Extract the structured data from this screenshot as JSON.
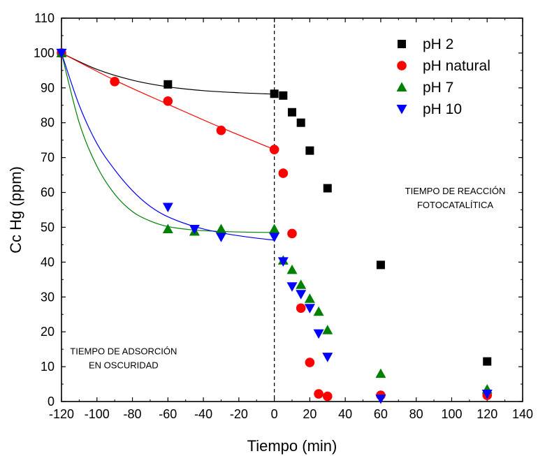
{
  "chart_data": {
    "type": "scatter",
    "xlabel": "Tiempo (min)",
    "ylabel": "Cc Hg (ppm)",
    "xlim": [
      -120,
      140
    ],
    "ylim": [
      0,
      110
    ],
    "x_ticks": [
      -120,
      -100,
      -80,
      -60,
      -40,
      -20,
      0,
      20,
      40,
      60,
      80,
      100,
      120,
      140
    ],
    "y_ticks": [
      0,
      10,
      20,
      30,
      40,
      50,
      60,
      70,
      80,
      90,
      100,
      110
    ],
    "grid": false,
    "legend_position": "top-right",
    "vertical_reference_line": {
      "x": 0,
      "style": "dashed"
    },
    "series": [
      {
        "name": "pH 2",
        "marker": "square",
        "color": "#000000",
        "points": [
          [
            -120,
            100
          ],
          [
            -60,
            91
          ],
          [
            0,
            88.3
          ],
          [
            5,
            87.8
          ],
          [
            10,
            83
          ],
          [
            15,
            80
          ],
          [
            20,
            72
          ],
          [
            30,
            61.2
          ],
          [
            60,
            39.2
          ],
          [
            120,
            11.5
          ]
        ],
        "fit_line": [
          [
            -120,
            100
          ],
          [
            -100,
            95.3
          ],
          [
            -80,
            92.2
          ],
          [
            -60,
            90.3
          ],
          [
            -40,
            89.2
          ],
          [
            -20,
            88.6
          ],
          [
            0,
            88.2
          ]
        ]
      },
      {
        "name": "pH natural",
        "marker": "circle",
        "color": "#ff0000",
        "points": [
          [
            -120,
            100
          ],
          [
            -90,
            91.8
          ],
          [
            -60,
            86.2
          ],
          [
            -30,
            77.8
          ],
          [
            0,
            72.3
          ],
          [
            5,
            65.5
          ],
          [
            10,
            48.2
          ],
          [
            15,
            26.8
          ],
          [
            20,
            11.2
          ],
          [
            25,
            2.2
          ],
          [
            30,
            1.5
          ],
          [
            60,
            1.8
          ],
          [
            120,
            1.8
          ]
        ],
        "fit_line": [
          [
            -120,
            100
          ],
          [
            -90,
            92.2
          ],
          [
            -60,
            85.3
          ],
          [
            -30,
            78.6
          ],
          [
            0,
            72.3
          ]
        ]
      },
      {
        "name": "pH 7",
        "marker": "triangle-up",
        "color": "#008000",
        "points": [
          [
            -120,
            100
          ],
          [
            -60,
            49.5
          ],
          [
            -45,
            48.8
          ],
          [
            -30,
            49.5
          ],
          [
            0,
            49.5
          ],
          [
            5,
            40.5
          ],
          [
            10,
            37.8
          ],
          [
            15,
            33.5
          ],
          [
            20,
            29.5
          ],
          [
            25,
            25.8
          ],
          [
            30,
            20.5
          ],
          [
            60,
            8
          ],
          [
            120,
            3.5
          ]
        ],
        "fit_line": [
          [
            -120,
            100
          ],
          [
            -110,
            80
          ],
          [
            -100,
            67.5
          ],
          [
            -90,
            59.5
          ],
          [
            -80,
            54.5
          ],
          [
            -70,
            51.8
          ],
          [
            -60,
            50.2
          ],
          [
            -45,
            49.2
          ],
          [
            -30,
            48.8
          ],
          [
            -15,
            48.6
          ],
          [
            0,
            48.5
          ]
        ]
      },
      {
        "name": "pH 10",
        "marker": "triangle-down",
        "color": "#0000ff",
        "points": [
          [
            -120,
            100
          ],
          [
            -60,
            55.8
          ],
          [
            -45,
            49.5
          ],
          [
            -30,
            47.2
          ],
          [
            0,
            47.2
          ],
          [
            5,
            40.2
          ],
          [
            10,
            33
          ],
          [
            15,
            30.8
          ],
          [
            20,
            26.8
          ],
          [
            25,
            19.5
          ],
          [
            30,
            12.8
          ],
          [
            60,
            0.8
          ],
          [
            120,
            2.2
          ]
        ],
        "fit_line": [
          [
            -120,
            100
          ],
          [
            -110,
            85
          ],
          [
            -100,
            74
          ],
          [
            -90,
            66.5
          ],
          [
            -80,
            60.5
          ],
          [
            -70,
            56
          ],
          [
            -60,
            53
          ],
          [
            -45,
            50.2
          ],
          [
            -30,
            48.4
          ],
          [
            -15,
            47.2
          ],
          [
            0,
            46.3
          ]
        ]
      }
    ],
    "annotations": [
      {
        "lines": [
          "TIEMPO DE ADSORCIÓN",
          "EN OSCURIDAD"
        ],
        "x": -85,
        "y": 13.5,
        "align": "middle"
      },
      {
        "lines": [
          "TIEMPO DE REACCIÓN",
          "FOTOCATALÍTICA"
        ],
        "x": 102,
        "y": 59.5,
        "align": "middle"
      }
    ]
  }
}
